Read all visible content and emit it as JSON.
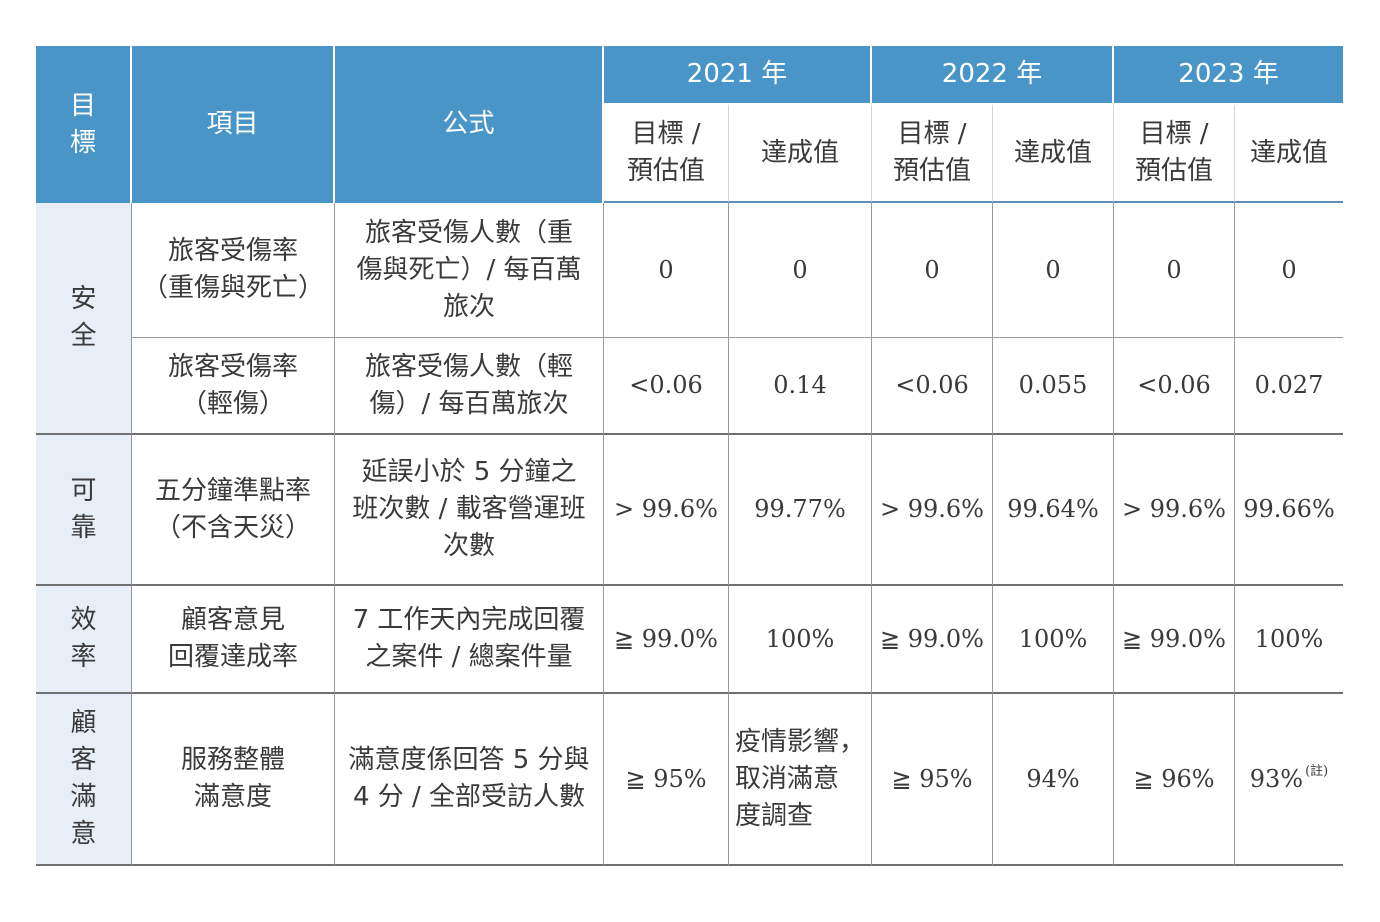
{
  "header": {
    "goal": "目\n標",
    "item": "項目",
    "formula": "公式",
    "years": [
      "2021 年",
      "2022 年",
      "2023 年"
    ],
    "target": "目標 /\n預估值",
    "actual": "達成值"
  },
  "rows": [
    {
      "goal": "安\n全",
      "item": "旅客受傷率\n（重傷與死亡）",
      "formula": "旅客受傷人數（重\n傷與死亡）/ 每百萬\n旅次",
      "values": [
        "0",
        "0",
        "0",
        "0",
        "0",
        "0"
      ]
    },
    {
      "item": "旅客受傷率\n（輕傷）",
      "formula": "旅客受傷人數（輕\n傷）/ 每百萬旅次",
      "values": [
        "<0.06",
        "0.14",
        "<0.06",
        "0.055",
        "<0.06",
        "0.027"
      ]
    },
    {
      "goal": "可\n靠",
      "item": "五分鐘準點率\n（不含天災）",
      "formula": "延誤小於 5 分鐘之\n班次數 / 載客營運班\n次數",
      "values": [
        "> 99.6%",
        "99.77%",
        "> 99.6%",
        "99.64%",
        "> 99.6%",
        "99.66%"
      ]
    },
    {
      "goal": "效\n率",
      "item": "顧客意見\n回覆達成率",
      "formula": "7 工作天內完成回覆\n之案件 / 總案件量",
      "values": [
        "≧ 99.0%",
        "100%",
        "≧ 99.0%",
        "100%",
        "≧ 99.0%",
        "100%"
      ]
    },
    {
      "goal": "顧\n客\n滿\n意",
      "item": "服務整體\n滿意度",
      "formula": "滿意度係回答 5 分與\n4 分 / 全部受訪人數",
      "values": [
        "≧ 95%",
        "疫情影響，\n取消滿意\n度調查",
        "≧ 95%",
        "94%",
        "≧ 96%",
        "93%"
      ],
      "note": "(註)"
    }
  ]
}
